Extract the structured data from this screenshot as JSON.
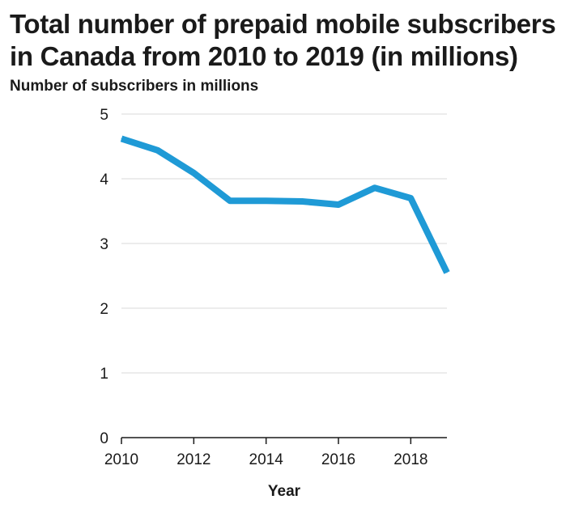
{
  "chart_data": {
    "type": "line",
    "title": "Total number of prepaid mobile subscribers in Canada from 2010 to 2019 (in millions)",
    "xlabel": "Year",
    "ylabel": "Number of subscribers in millions",
    "x": [
      2010,
      2011,
      2012,
      2013,
      2014,
      2015,
      2016,
      2017,
      2018,
      2019
    ],
    "series": [
      {
        "values": [
          4.62,
          4.44,
          4.09,
          3.66,
          3.66,
          3.65,
          3.6,
          3.86,
          3.7,
          2.55
        ]
      }
    ],
    "xlim": [
      2010,
      2019
    ],
    "ylim": [
      0,
      5
    ],
    "x_ticks": [
      2010,
      2012,
      2014,
      2016,
      2018
    ],
    "y_ticks": [
      0,
      1,
      2,
      3,
      4,
      5
    ],
    "grid": "horizontal",
    "colors": {
      "line": "#1f9ad6",
      "grid": "#d9d9d9",
      "axis": "#1a1a1a"
    }
  }
}
